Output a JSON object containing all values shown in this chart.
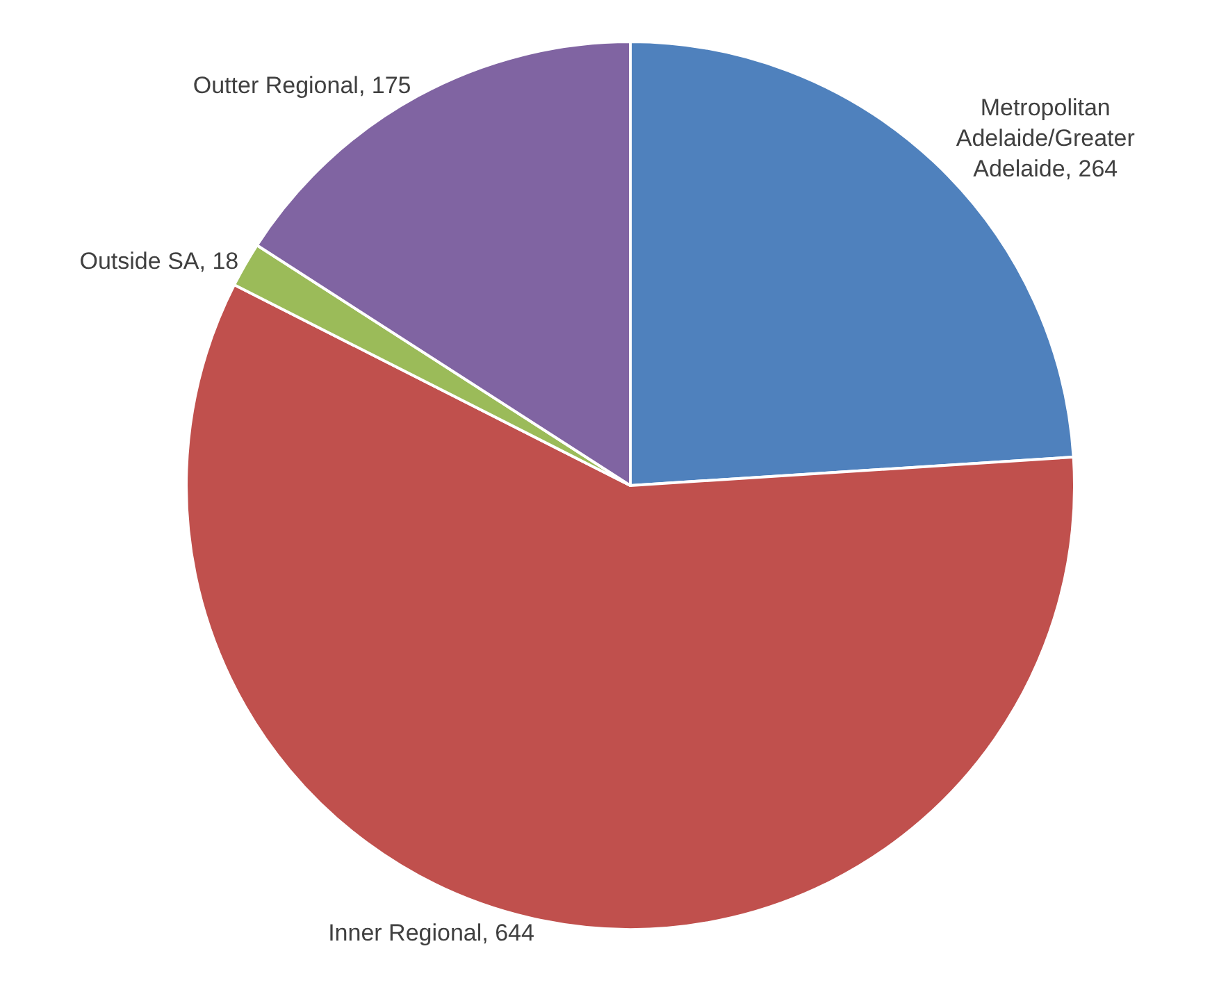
{
  "chart_data": {
    "type": "pie",
    "categories": [
      "Metropolitan Adelaide/Greater Adelaide, 264",
      "Inner Regional, 644",
      "Outside SA, 18",
      "Outter Regional, 175"
    ],
    "values": [
      264,
      644,
      18,
      175
    ],
    "colors": [
      "#4f81bd",
      "#c0504d",
      "#9bbb59",
      "#8064a2"
    ],
    "legend": false
  }
}
